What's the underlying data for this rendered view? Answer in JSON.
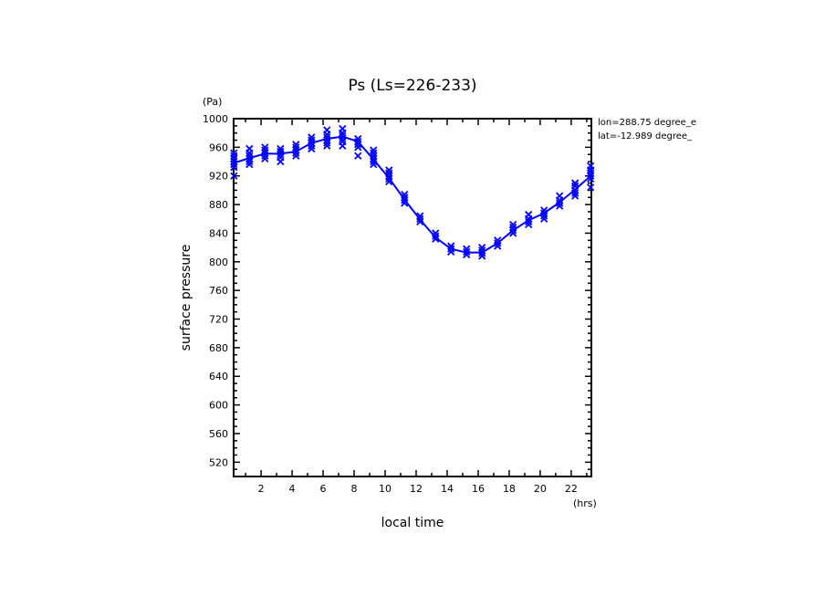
{
  "chart_data": {
    "type": "line",
    "title": "Ps (Ls=226-233)",
    "xlabel": "local time",
    "xunit": "(hrs)",
    "ylabel": "surface pressure",
    "yunit": "(Pa)",
    "xlim": [
      0.23,
      23.3
    ],
    "ylim": [
      500,
      1000
    ],
    "xticks": [
      2,
      4,
      6,
      8,
      10,
      12,
      14,
      16,
      18,
      20,
      22
    ],
    "yticks": [
      520,
      560,
      600,
      640,
      680,
      720,
      760,
      800,
      840,
      880,
      920,
      960,
      1000
    ],
    "annotations": [
      "lon=288.75 degree_e",
      "lat=-12.989 degree_"
    ],
    "color": "#0000ff",
    "series": [
      {
        "name": "mean",
        "style": "line",
        "x": [
          0.25,
          1.25,
          2.25,
          3.25,
          4.25,
          5.25,
          6.25,
          7.25,
          8.25,
          9.25,
          10.25,
          11.25,
          12.25,
          13.25,
          14.25,
          15.25,
          16.25,
          17.25,
          18.25,
          19.25,
          20.25,
          21.25,
          22.25,
          23.25
        ],
        "y": [
          938,
          945,
          951,
          951,
          954,
          966,
          972,
          975,
          968,
          943,
          917,
          887,
          859,
          834,
          818,
          813,
          813,
          826,
          844,
          858,
          868,
          883,
          901,
          920
        ]
      },
      {
        "name": "samples",
        "style": "x-markers",
        "x": [
          0.25,
          1.25,
          2.25,
          3.25,
          4.25,
          5.25,
          6.25,
          7.25,
          8.25,
          9.25,
          10.25,
          11.25,
          12.25,
          13.25,
          14.25,
          15.25,
          16.25,
          17.25,
          18.25,
          19.25,
          20.25,
          21.25,
          22.25,
          23.25
        ],
        "y": [
          [
            920,
            932,
            936,
            940,
            944,
            948,
            952
          ],
          [
            936,
            940,
            944,
            948,
            952,
            958
          ],
          [
            944,
            948,
            952,
            956,
            960
          ],
          [
            940,
            946,
            950,
            954,
            958
          ],
          [
            948,
            952,
            956,
            960,
            964
          ],
          [
            958,
            962,
            966,
            970,
            974
          ],
          [
            962,
            966,
            970,
            974,
            978,
            984
          ],
          [
            962,
            968,
            972,
            976,
            980,
            986
          ],
          [
            948,
            960,
            964,
            968,
            972
          ],
          [
            936,
            940,
            944,
            948,
            952,
            956
          ],
          [
            912,
            916,
            920,
            924,
            928
          ],
          [
            882,
            886,
            890,
            894
          ],
          [
            856,
            860,
            864
          ],
          [
            832,
            836,
            840
          ],
          [
            814,
            818,
            822
          ],
          [
            810,
            814,
            818
          ],
          [
            808,
            812,
            816,
            820
          ],
          [
            822,
            826,
            830
          ],
          [
            840,
            844,
            848,
            852
          ],
          [
            852,
            856,
            860,
            866
          ],
          [
            860,
            864,
            868,
            872
          ],
          [
            878,
            882,
            886,
            892
          ],
          [
            892,
            896,
            900,
            906,
            910
          ],
          [
            904,
            916,
            920,
            924,
            928,
            934
          ]
        ]
      }
    ]
  }
}
